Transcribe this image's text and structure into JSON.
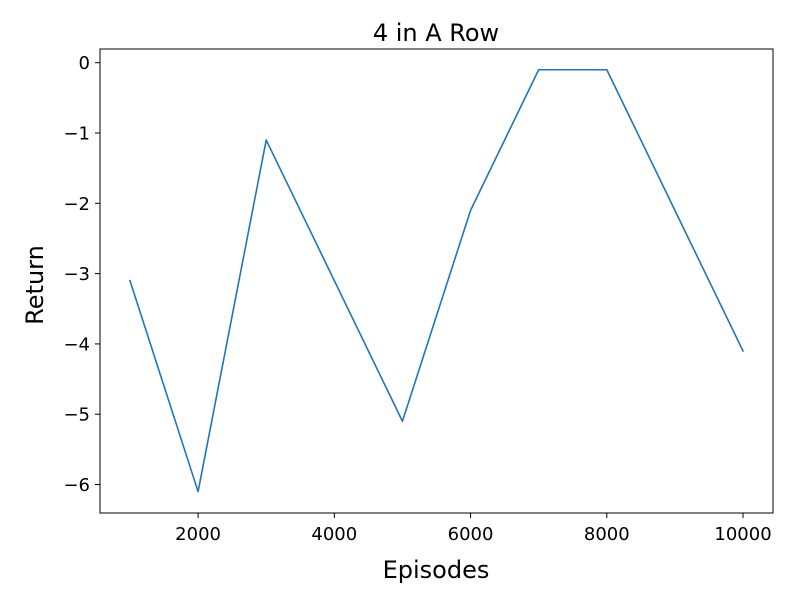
{
  "chart_data": {
    "type": "line",
    "title": "4 in A Row",
    "xlabel": "Episodes",
    "ylabel": "Return",
    "xlim": [
      560,
      10440
    ],
    "ylim": [
      -6.405,
      0.195
    ],
    "xticks": [
      2000,
      4000,
      6000,
      8000,
      10000
    ],
    "xtick_labels": [
      "2000",
      "4000",
      "6000",
      "8000",
      "10000"
    ],
    "yticks": [
      0,
      -1,
      -2,
      -3,
      -4,
      -5,
      -6
    ],
    "ytick_labels": [
      "0",
      "−1",
      "−2",
      "−3",
      "−4",
      "−5",
      "−6"
    ],
    "grid": false,
    "series": [
      {
        "color": "#1f77b4",
        "x": [
          1000,
          2000,
          3000,
          4000,
          5000,
          6000,
          7000,
          8000,
          9000,
          10000
        ],
        "y": [
          -3.1,
          -6.1,
          -1.1,
          -3.1,
          -5.1,
          -2.1,
          -0.1,
          -0.1,
          -2.1,
          -4.1
        ]
      }
    ]
  }
}
